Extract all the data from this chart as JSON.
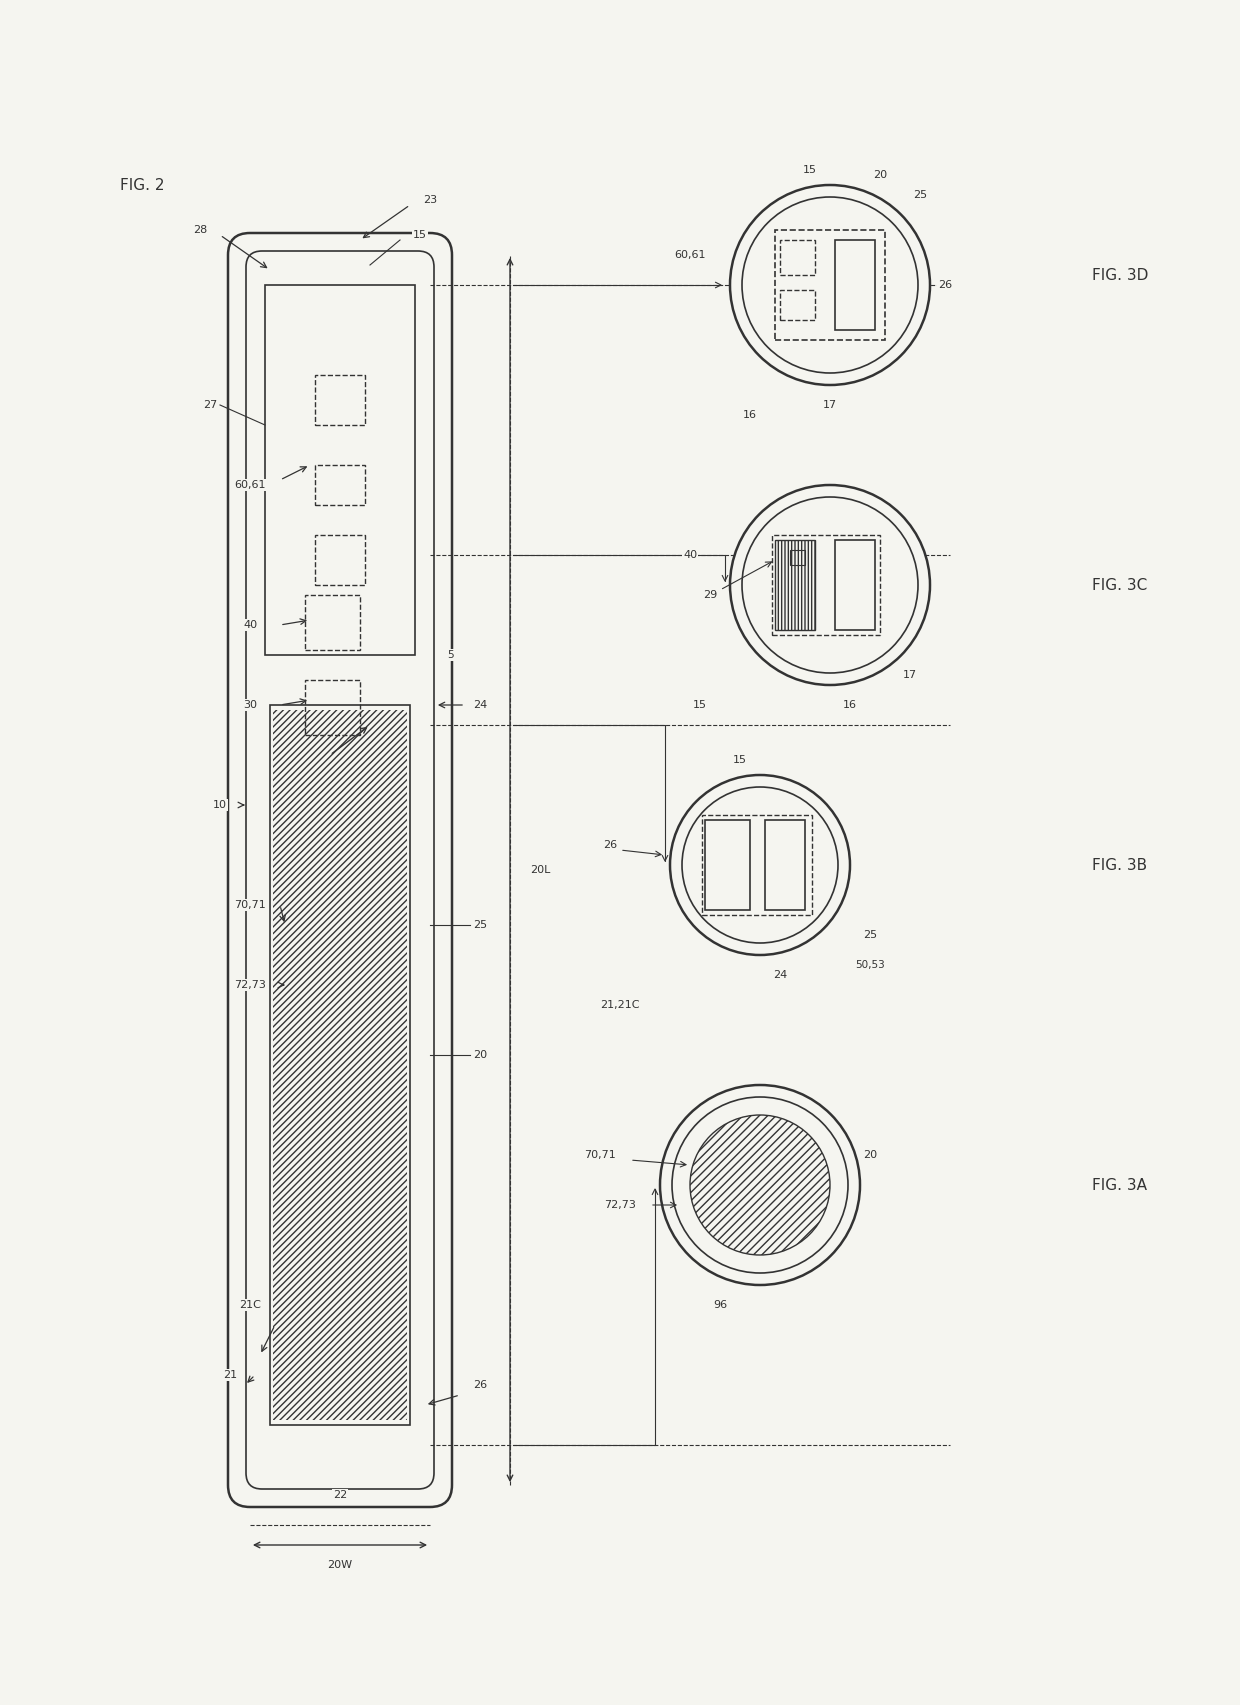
{
  "bg_color": "#f5f5f0",
  "line_color": "#333333",
  "fig_width": 12.4,
  "fig_height": 17.05,
  "title": "FIG. 2",
  "fig3a_label": "FIG. 3A",
  "fig3b_label": "FIG. 3B",
  "fig3c_label": "FIG. 3C",
  "fig3d_label": "FIG. 3D"
}
